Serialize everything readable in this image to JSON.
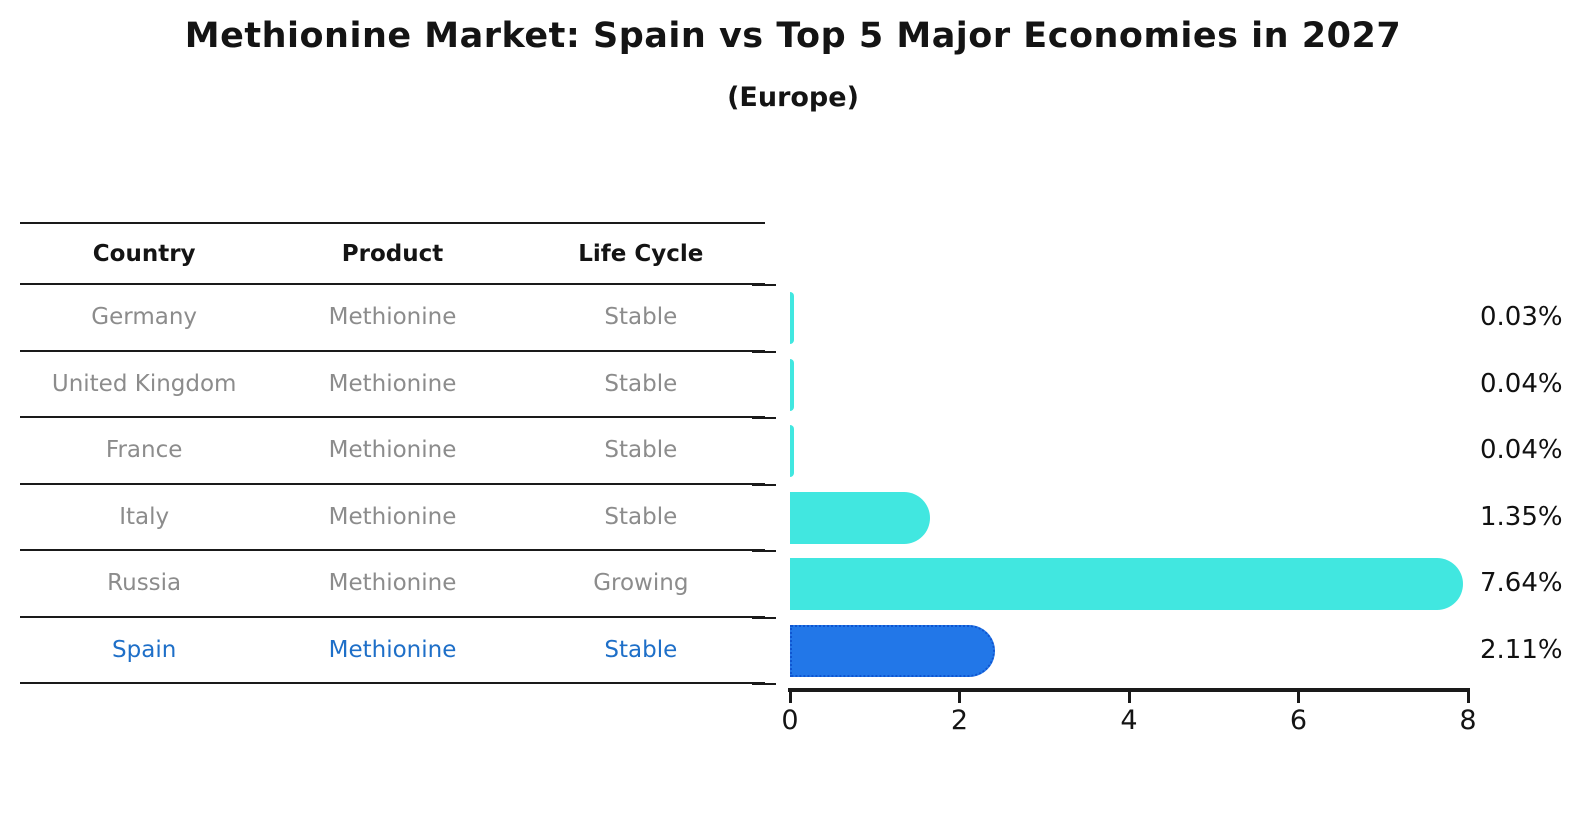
{
  "title": "Methionine Market: Spain vs Top 5 Major Economies in 2027",
  "subtitle": "(Europe)",
  "table": {
    "headers": [
      "Country",
      "Product",
      "Life Cycle"
    ],
    "rows": [
      {
        "country": "Germany",
        "product": "Methionine",
        "life_cycle": "Stable",
        "highlighted": false
      },
      {
        "country": "United Kingdom",
        "product": "Methionine",
        "life_cycle": "Stable",
        "highlighted": false
      },
      {
        "country": "France",
        "product": "Methionine",
        "life_cycle": "Stable",
        "highlighted": false
      },
      {
        "country": "Italy",
        "product": "Methionine",
        "life_cycle": "Stable",
        "highlighted": false
      },
      {
        "country": "Russia",
        "product": "Methionine",
        "life_cycle": "Growing",
        "highlighted": false
      },
      {
        "country": "Spain",
        "product": "Methionine",
        "life_cycle": "Stable",
        "highlighted": true
      }
    ]
  },
  "chart_data": {
    "type": "bar",
    "orientation": "horizontal",
    "title": "Methionine Market: Spain vs Top 5 Major Economies in 2027",
    "subtitle": "(Europe)",
    "categories": [
      "Germany",
      "United Kingdom",
      "France",
      "Italy",
      "Russia",
      "Spain"
    ],
    "values": [
      0.03,
      0.04,
      0.04,
      1.35,
      7.64,
      2.11
    ],
    "labels": [
      "0.03%",
      "0.04%",
      "0.04%",
      "1.35%",
      "7.64%",
      "2.11%"
    ],
    "xlabel": "",
    "ylabel": "",
    "xlim": [
      0,
      8
    ],
    "xticks": [
      "0",
      "2",
      "4",
      "6",
      "8"
    ],
    "grid": false,
    "legend": false,
    "bar_color": "#41e7e0",
    "highlight_color": "#2277e8",
    "highlight_border_color": "#0f55d0",
    "highlight_index": 5,
    "highlight_text_color": "#1e6fc8",
    "table_text_color": "#8c8c8c"
  }
}
